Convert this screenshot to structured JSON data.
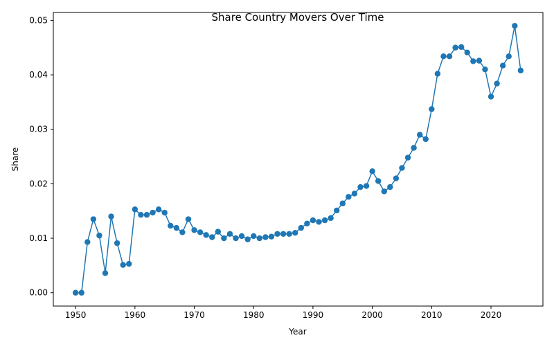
{
  "chart_data": {
    "type": "line",
    "title": "Share Country Movers Over Time",
    "xlabel": "Year",
    "ylabel": "Share",
    "xlim": [
      1946.25,
      2028.75
    ],
    "ylim": [
      -0.00245,
      0.05145
    ],
    "xticks": [
      1950,
      1960,
      1970,
      1980,
      1990,
      2000,
      2010,
      2020
    ],
    "xtick_labels": [
      "1950",
      "1960",
      "1970",
      "1980",
      "1990",
      "2000",
      "2010",
      "2020"
    ],
    "yticks": [
      0.0,
      0.01,
      0.02,
      0.03,
      0.04,
      0.05
    ],
    "ytick_labels": [
      "0.00",
      "0.01",
      "0.02",
      "0.03",
      "0.04",
      "0.05"
    ],
    "grid": false,
    "legend": "none",
    "color": "#1f77b4",
    "marker": "circle",
    "series": [
      {
        "x": [
          1950,
          1951,
          1952,
          1953,
          1954,
          1955,
          1956,
          1957,
          1958,
          1959,
          1960,
          1961,
          1962,
          1963,
          1964,
          1965,
          1966,
          1967,
          1968,
          1969,
          1970,
          1971,
          1972,
          1973,
          1974,
          1975,
          1976,
          1977,
          1978,
          1979,
          1980,
          1981,
          1982,
          1983,
          1984,
          1985,
          1986,
          1987,
          1988,
          1989,
          1990,
          1991,
          1992,
          1993,
          1994,
          1995,
          1996,
          1997,
          1998,
          1999,
          2000,
          2001,
          2002,
          2003,
          2004,
          2005,
          2006,
          2007,
          2008,
          2009,
          2010,
          2011,
          2012,
          2013,
          2014,
          2015,
          2016,
          2017,
          2018,
          2019,
          2020,
          2021,
          2022,
          2023,
          2024,
          2025
        ],
        "y": [
          0.0,
          0.0,
          0.0093,
          0.0135,
          0.0105,
          0.0036,
          0.014,
          0.0091,
          0.0051,
          0.0053,
          0.0153,
          0.0143,
          0.0143,
          0.0147,
          0.0153,
          0.0147,
          0.0123,
          0.0119,
          0.0111,
          0.0135,
          0.0115,
          0.0111,
          0.0106,
          0.0102,
          0.0112,
          0.01,
          0.0108,
          0.01,
          0.0104,
          0.0098,
          0.0104,
          0.01,
          0.0102,
          0.0103,
          0.0108,
          0.0108,
          0.0108,
          0.011,
          0.0119,
          0.0127,
          0.0133,
          0.013,
          0.0133,
          0.0137,
          0.0151,
          0.0164,
          0.0176,
          0.0182,
          0.0194,
          0.0196,
          0.0223,
          0.0205,
          0.0186,
          0.0194,
          0.021,
          0.0229,
          0.0248,
          0.0266,
          0.029,
          0.0282,
          0.0337,
          0.0402,
          0.0434,
          0.0434,
          0.045,
          0.0451,
          0.0441,
          0.0425,
          0.0426,
          0.041,
          0.036,
          0.0384,
          0.0417,
          0.0434,
          0.049,
          0.0408
        ]
      }
    ]
  }
}
